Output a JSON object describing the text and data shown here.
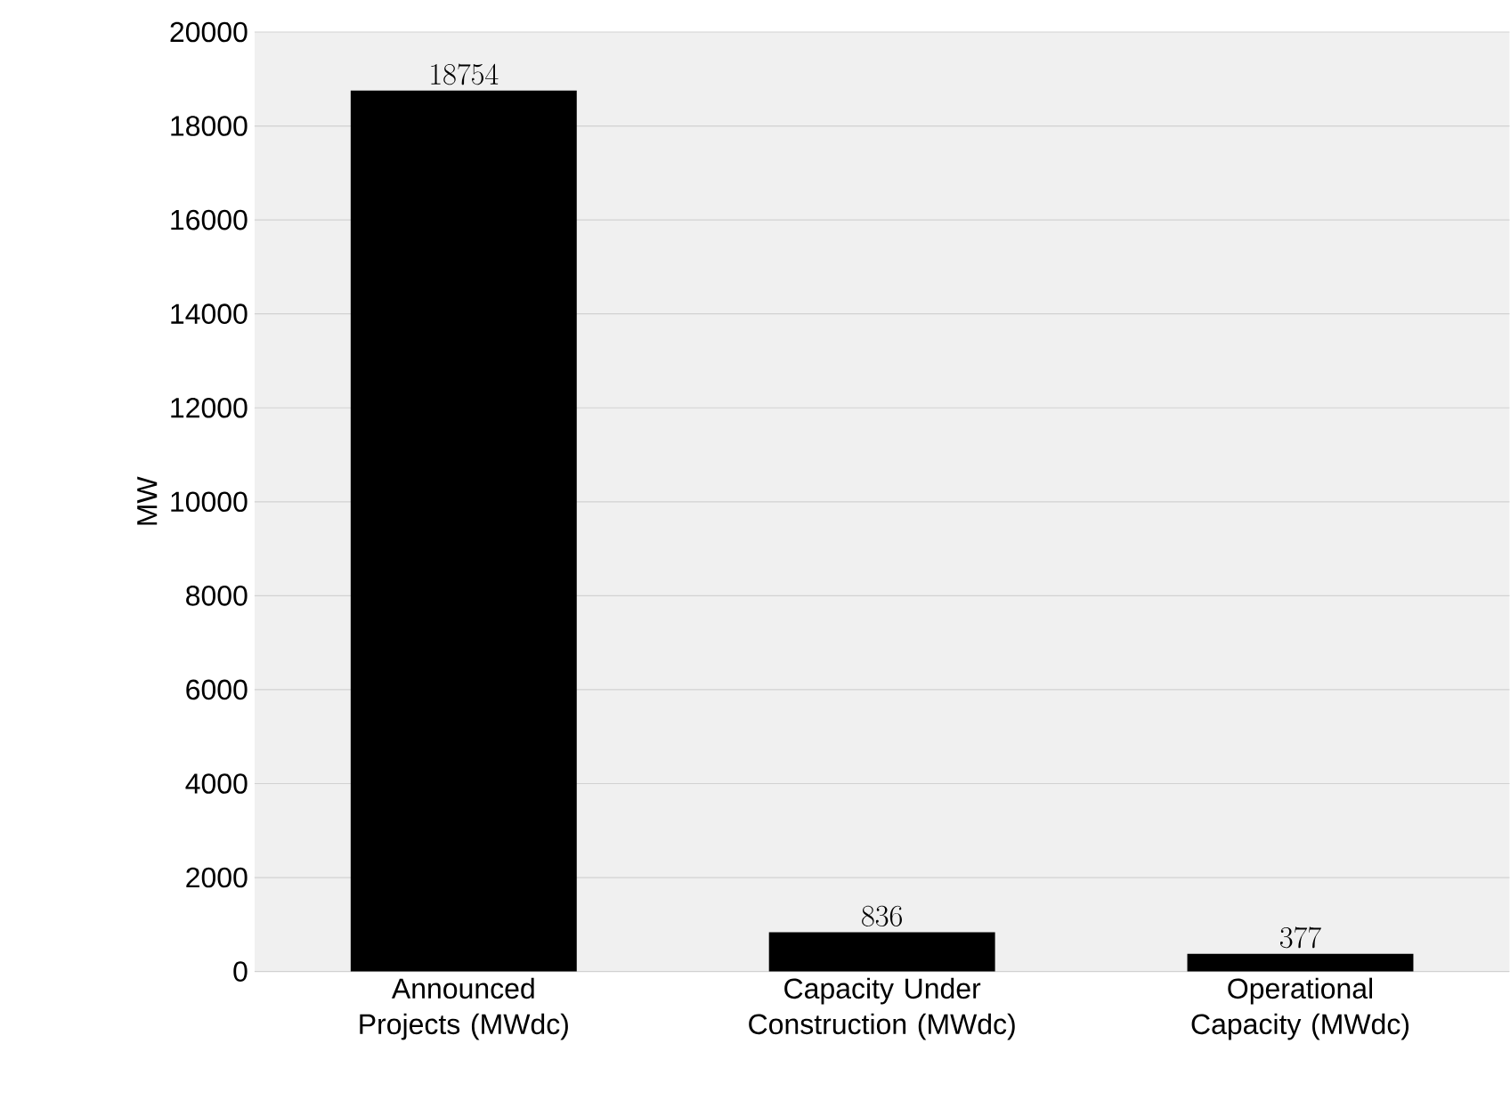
{
  "chart_data": {
    "type": "bar",
    "ylabel": "MW",
    "categories": [
      "Announced Projects (MWdc)",
      "Capacity Under Construction (MWdc)",
      "Operational Capacity (MWdc)"
    ],
    "values": [
      18754,
      836,
      377
    ],
    "color": "#000000",
    "ylim": [
      0,
      20000
    ],
    "yticks": [
      0,
      2000,
      4000,
      6000,
      8000,
      10000,
      12000,
      14000,
      16000,
      18000,
      20000
    ],
    "grid": "y",
    "data_labels": true
  }
}
